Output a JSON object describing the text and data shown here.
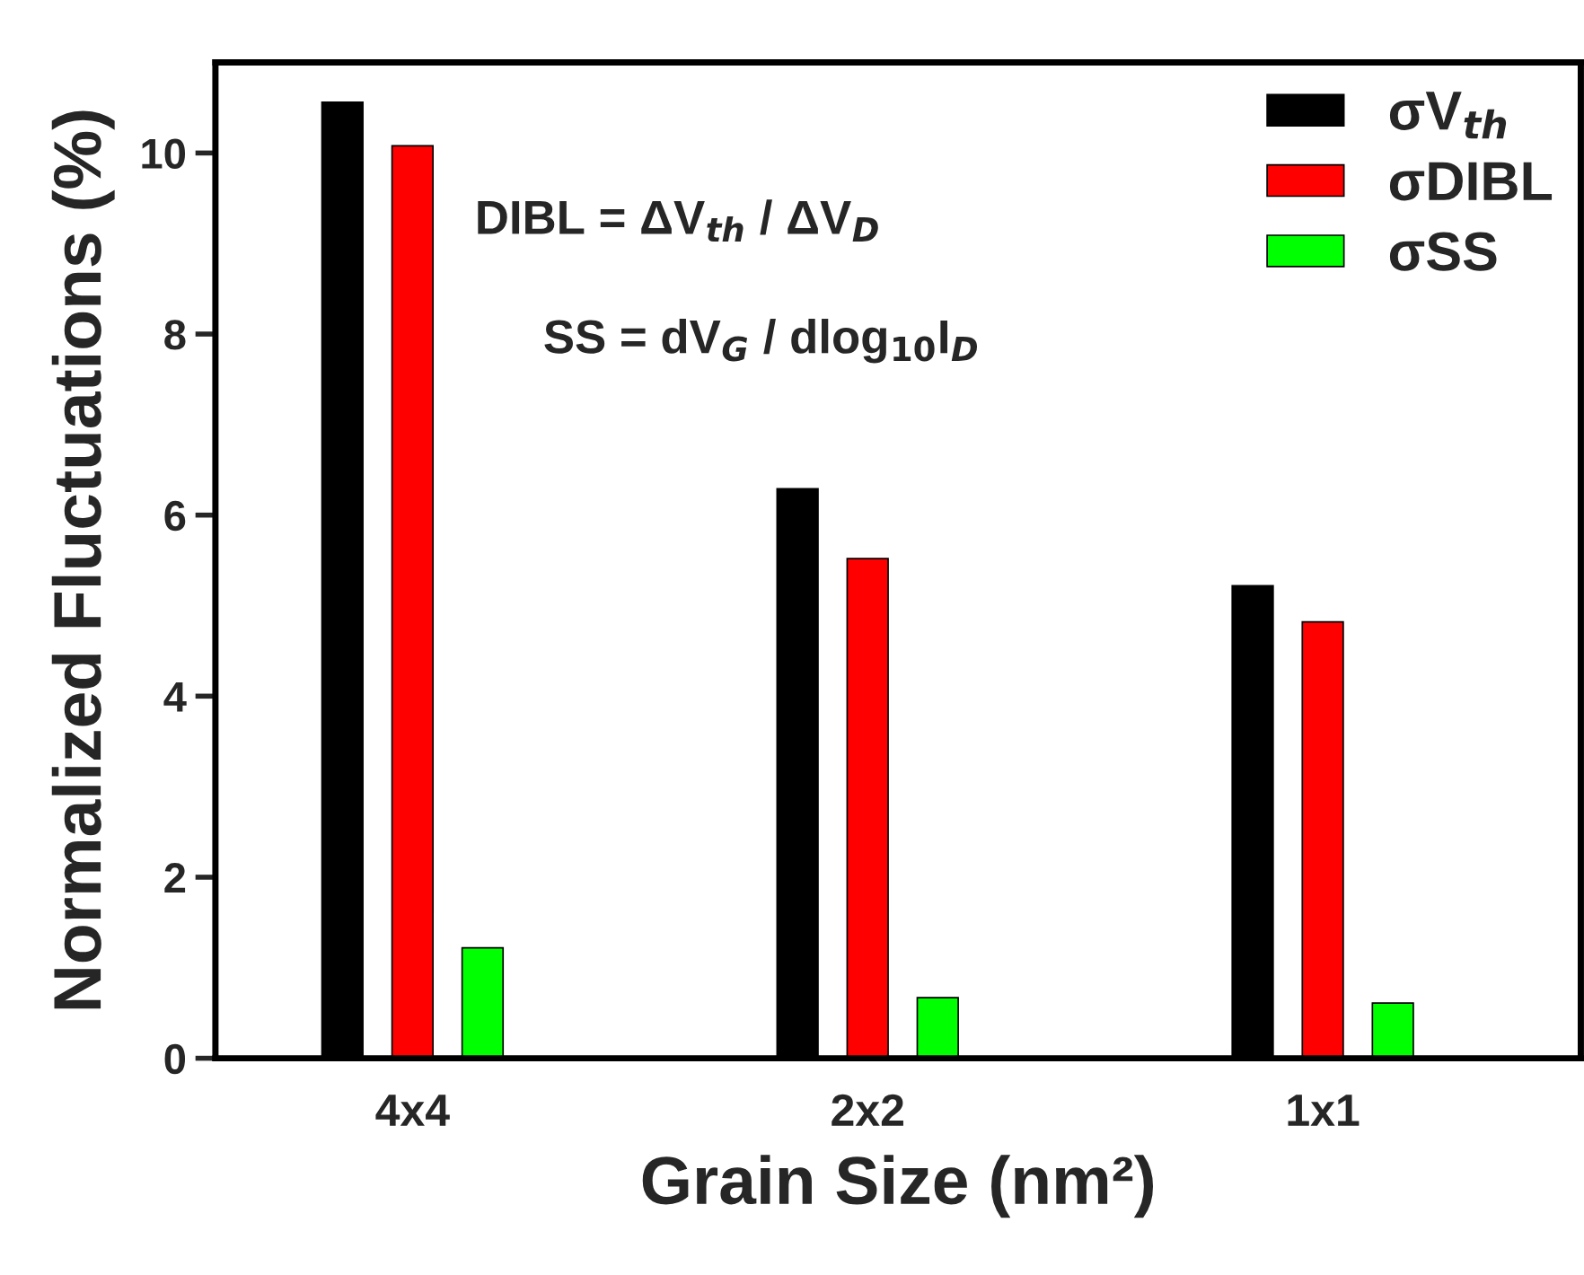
{
  "chart_data": {
    "type": "bar",
    "xlabel": "Grain Size (nm²)",
    "ylabel": "Normalized Fluctuations (%)",
    "categories": [
      "4x4",
      "2x2",
      "1x1"
    ],
    "series": [
      {
        "name": "σV$_{th}$",
        "color": "#000000",
        "values": [
          10.56,
          6.29,
          5.22
        ]
      },
      {
        "name": "σDIBL",
        "color": "#ff0000",
        "values": [
          10.08,
          5.52,
          4.82
        ]
      },
      {
        "name": "σSS",
        "color": "#00ff00",
        "values": [
          1.22,
          0.67,
          0.61
        ]
      }
    ],
    "ylim": [
      0,
      11
    ],
    "yticks": [
      0,
      2,
      4,
      6,
      8,
      10
    ],
    "grid": false,
    "legend": "top right",
    "annotations": [
      "DIBL = ΔV$_{th}$ / ΔV$_{D}$",
      "SS = dV$_{G}$ / dlog$_{10}$I$_{D}$"
    ]
  }
}
